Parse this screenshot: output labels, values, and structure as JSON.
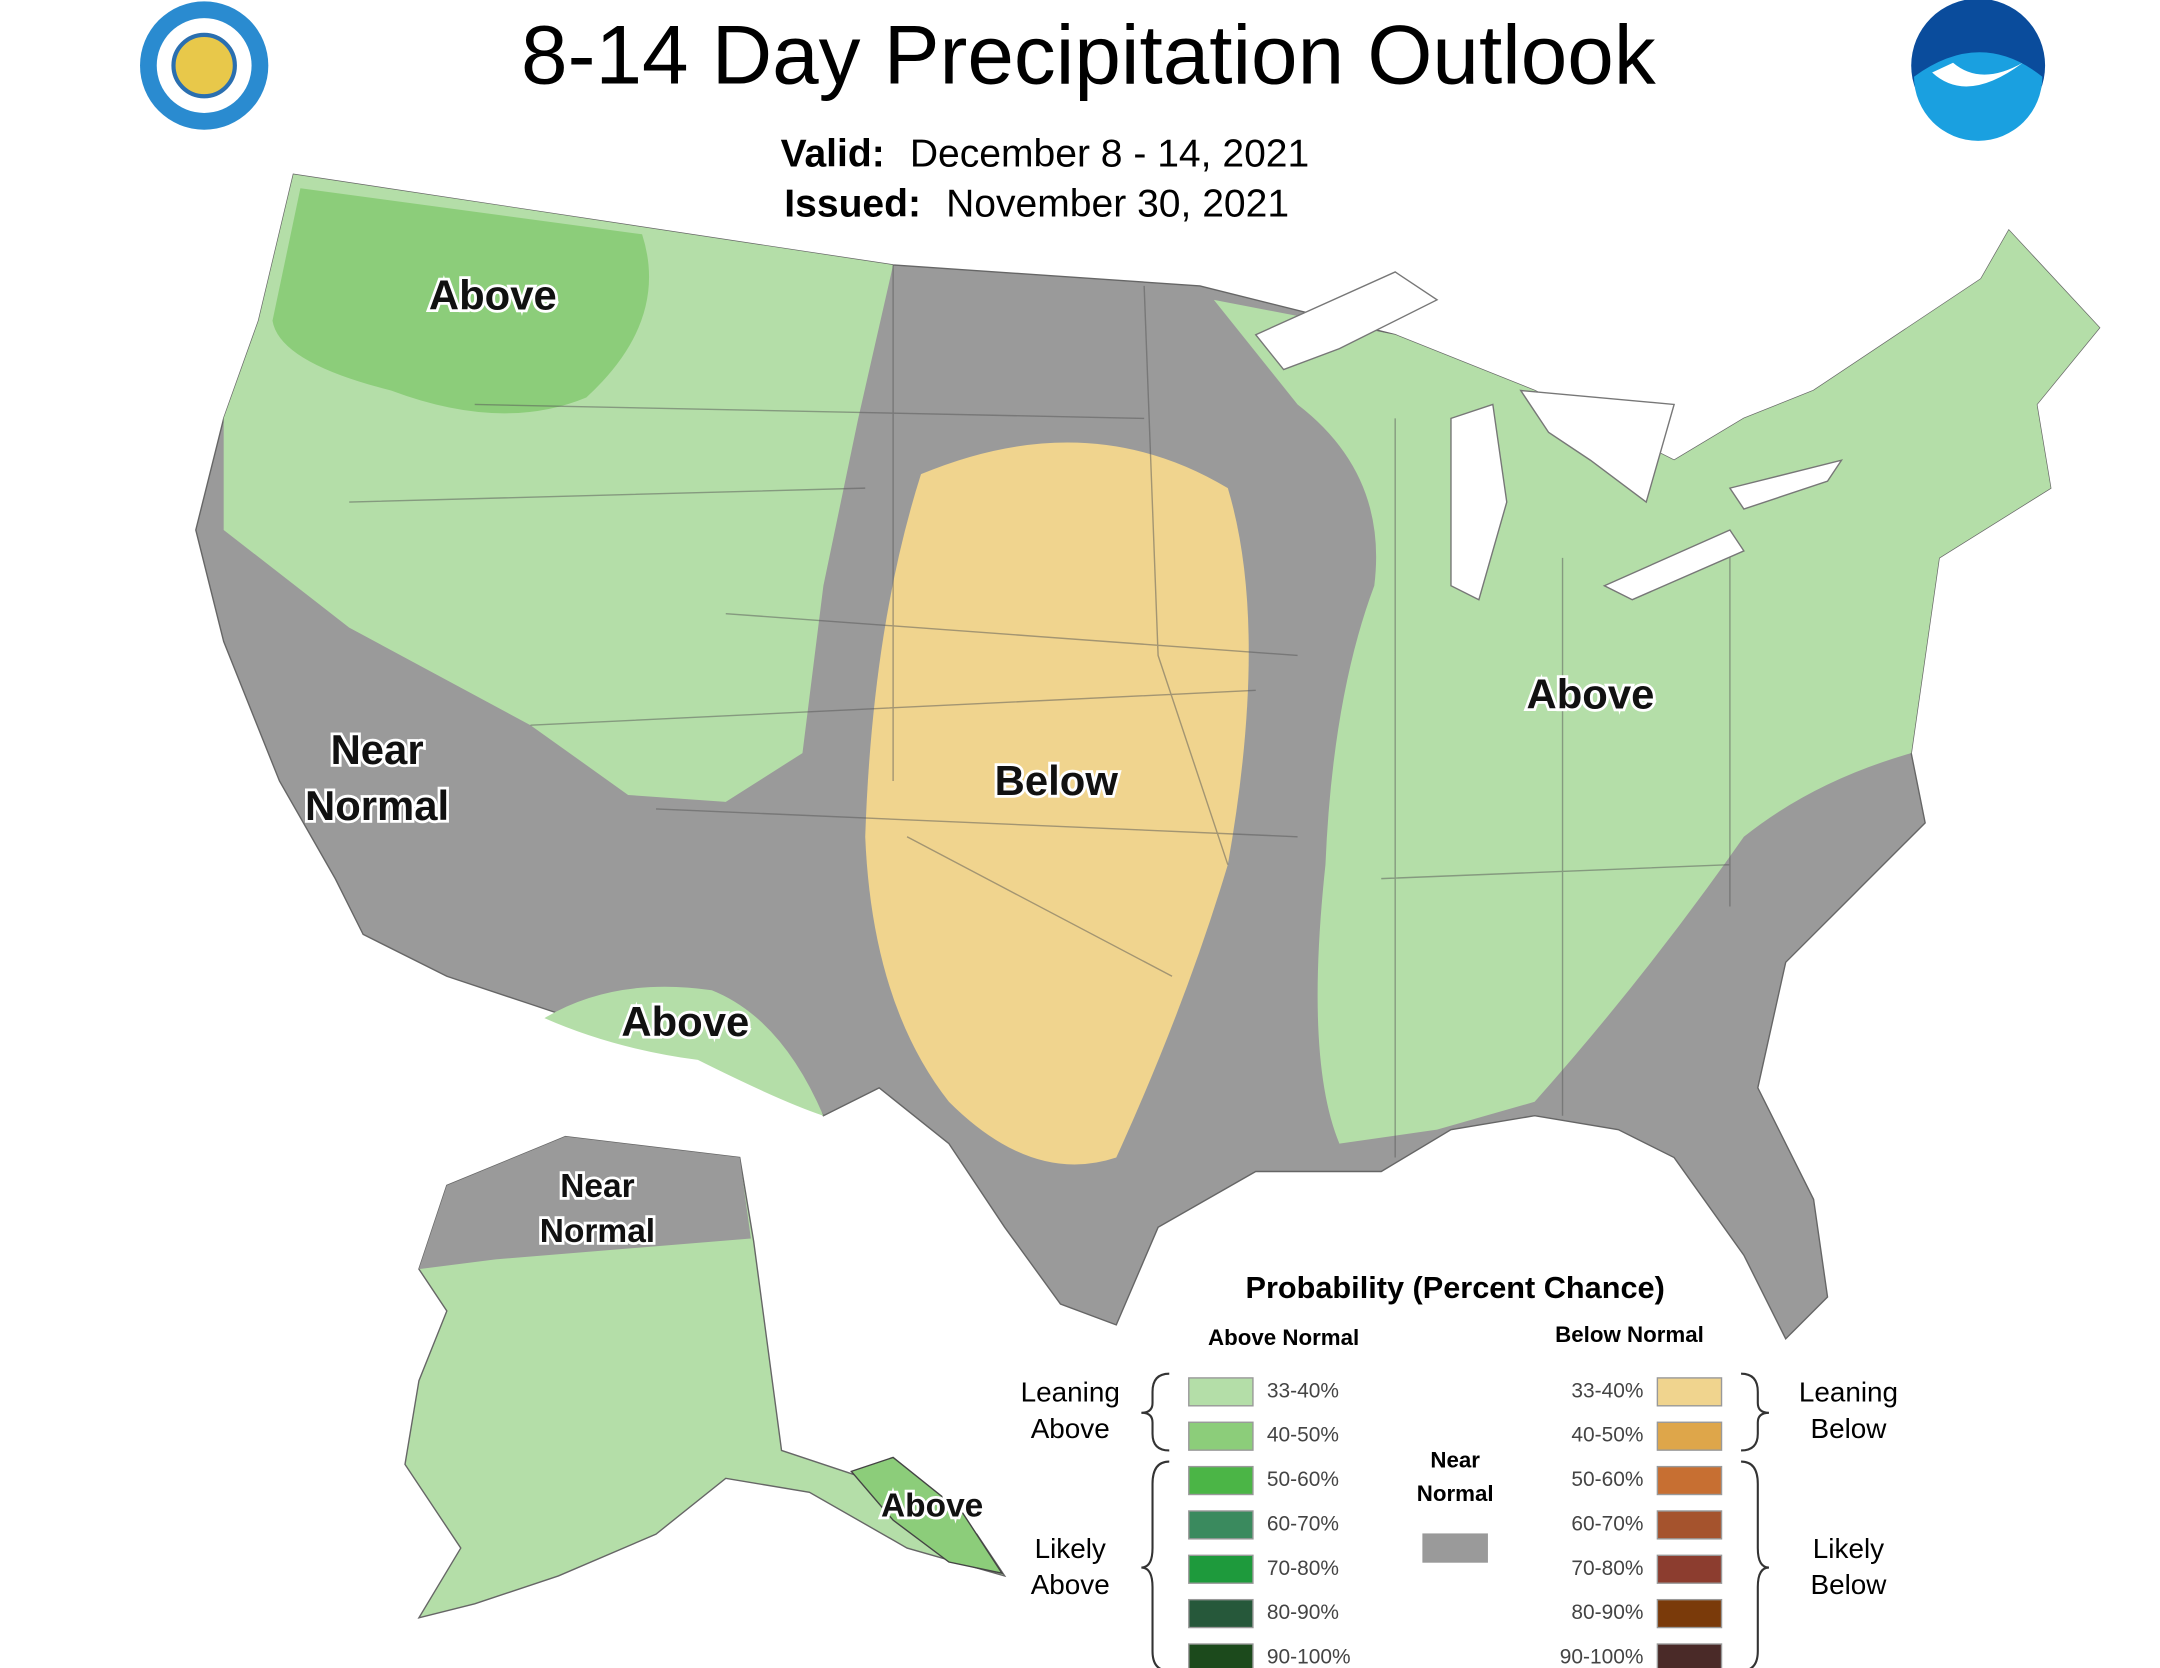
{
  "header": {
    "title": "8-14 Day Precipitation Outlook",
    "valid_label": "Valid:",
    "valid": "December 8 - 14, 2021",
    "issued_label": "Issued:",
    "issued": "November 30, 2021"
  },
  "map": {
    "regions": [
      {
        "lines": [
          "Above"
        ]
      },
      {
        "lines": [
          "Near",
          "Normal"
        ]
      },
      {
        "lines": [
          "Above"
        ]
      },
      {
        "lines": [
          "Below"
        ]
      },
      {
        "lines": [
          "Above"
        ]
      },
      {
        "lines": [
          "Near",
          "Normal"
        ]
      },
      {
        "lines": [
          "Above"
        ]
      }
    ]
  },
  "legend": {
    "title": "Probability (Percent Chance)",
    "above_header": "Above Normal",
    "below_header": "Below Normal",
    "leaning_above": [
      "Leaning",
      "Above"
    ],
    "likely_above": [
      "Likely",
      "Above"
    ],
    "leaning_below": [
      "Leaning",
      "Below"
    ],
    "likely_below": [
      "Likely",
      "Below"
    ],
    "near_normal": {
      "lines": [
        "Near",
        "Normal"
      ],
      "color": "#9a9a9a"
    },
    "above": [
      {
        "label": "33-40%",
        "color": "#b4dea8"
      },
      {
        "label": "40-50%",
        "color": "#8ccd7a"
      },
      {
        "label": "50-60%",
        "color": "#4bb546"
      },
      {
        "label": "60-70%",
        "color": "#3a8a5e"
      },
      {
        "label": "70-80%",
        "color": "#1e9a3c"
      },
      {
        "label": "80-90%",
        "color": "#26583a"
      },
      {
        "label": "90-100%",
        "color": "#1c4a1c"
      }
    ],
    "below": [
      {
        "label": "33-40%",
        "color": "#f0d48e"
      },
      {
        "label": "40-50%",
        "color": "#dea64a"
      },
      {
        "label": "50-60%",
        "color": "#c76f32"
      },
      {
        "label": "60-70%",
        "color": "#a5532d"
      },
      {
        "label": "70-80%",
        "color": "#8c3d2f"
      },
      {
        "label": "80-90%",
        "color": "#7a3a0a"
      },
      {
        "label": "90-100%",
        "color": "#4a2a28"
      }
    ]
  }
}
